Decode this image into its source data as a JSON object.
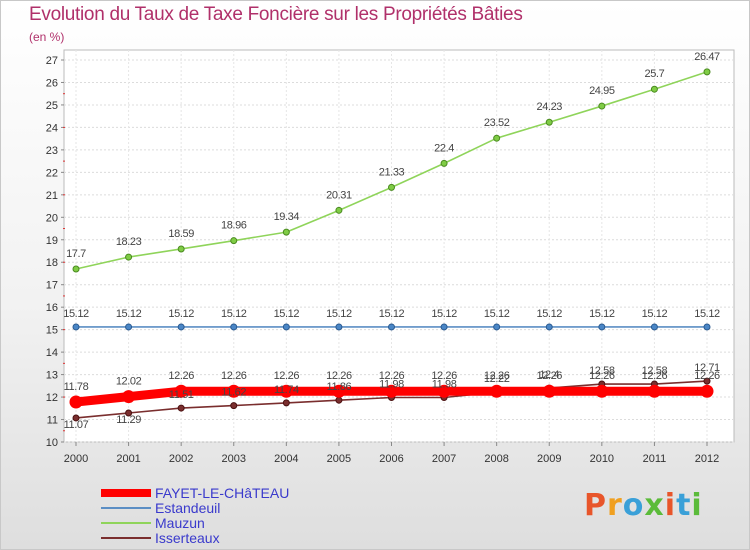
{
  "chart_data": {
    "type": "line",
    "title": "Evolution du Taux de Taxe Foncière sur les Propriétés Bâties",
    "ylabel": "(en %)",
    "xlabel": "",
    "ylim": [
      10,
      27
    ],
    "yticks": [
      10,
      11,
      12,
      13,
      14,
      15,
      16,
      17,
      18,
      19,
      20,
      21,
      22,
      23,
      24,
      25,
      26,
      27
    ],
    "categories": [
      "2000",
      "2001",
      "2002",
      "2003",
      "2004",
      "2005",
      "2006",
      "2007",
      "2008",
      "2009",
      "2010",
      "2011",
      "2012"
    ],
    "series": [
      {
        "name": "FAYET-LE-CHâTEAU",
        "color": "#ff0000",
        "values": [
          11.78,
          12.02,
          12.26,
          12.26,
          12.26,
          12.26,
          12.26,
          12.26,
          12.26,
          12.26,
          12.26,
          12.26,
          12.26
        ],
        "labels": [
          "11.78",
          "12.02",
          "12.26",
          "12.26",
          "12.26",
          "12.26",
          "12.26",
          "12.26",
          "12.26",
          "12.26",
          "12.26",
          "12.26",
          "12.26"
        ]
      },
      {
        "name": "Estandeuil",
        "color": "#5b8ec4",
        "values": [
          15.12,
          15.12,
          15.12,
          15.12,
          15.12,
          15.12,
          15.12,
          15.12,
          15.12,
          15.12,
          15.12,
          15.12,
          15.12
        ],
        "labels": [
          "15.12",
          "15.12",
          "15.12",
          "15.12",
          "15.12",
          "15.12",
          "15.12",
          "15.12",
          "15.12",
          "15.12",
          "15.12",
          "15.12",
          "15.12"
        ]
      },
      {
        "name": "Mauzun",
        "color": "#8fd45a",
        "values": [
          17.7,
          18.23,
          18.59,
          18.96,
          19.34,
          20.31,
          21.33,
          22.4,
          23.52,
          24.23,
          24.95,
          25.7,
          26.47
        ],
        "labels": [
          "17.7",
          "18.23",
          "18.59",
          "18.96",
          "19.34",
          "20.31",
          "21.33",
          "22.4",
          "23.52",
          "24.23",
          "24.95",
          "25.7",
          "26.47"
        ]
      },
      {
        "name": "Isserteaux",
        "color": "#7a2e2e",
        "values": [
          11.07,
          11.29,
          11.51,
          11.62,
          11.74,
          11.86,
          11.98,
          11.98,
          12.22,
          12.4,
          12.58,
          12.58,
          12.71
        ],
        "labels": [
          "11.07",
          "11.29",
          "11.51",
          "11.62",
          "11.74",
          "11.86",
          "11.98",
          "11.98",
          "12.22",
          "12.4",
          "12.58",
          "12.58",
          "12.71"
        ]
      }
    ],
    "legend_position": "bottom-left"
  },
  "brand": {
    "text": "Proxiti",
    "colors": [
      "#e8552a",
      "#f0a020",
      "#3aa0d8",
      "#5bbb3a",
      "#e8552a",
      "#3aa0d8",
      "#5bbb3a"
    ]
  }
}
